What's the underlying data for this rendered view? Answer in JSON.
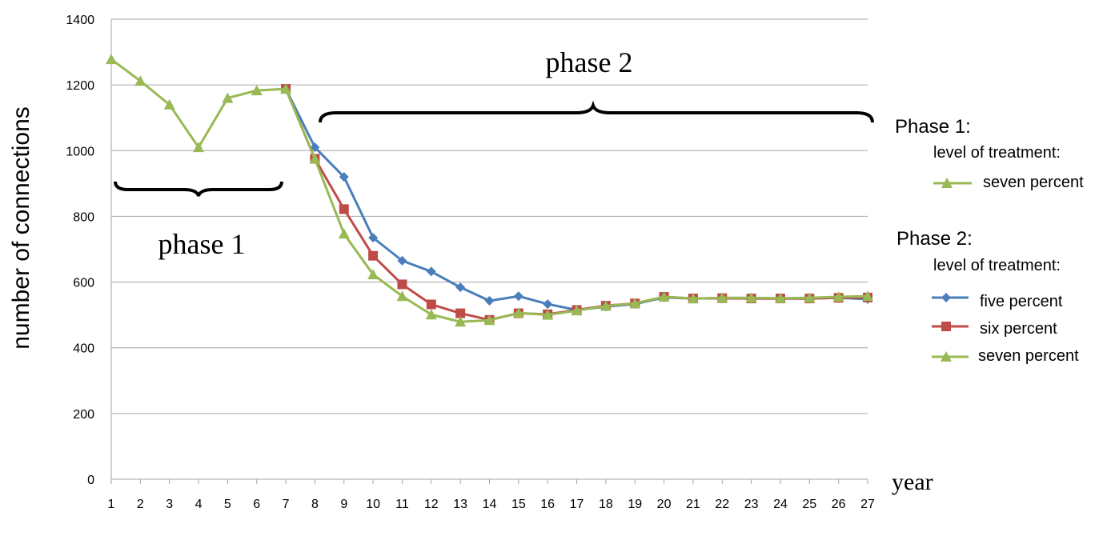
{
  "chart_data": {
    "type": "line",
    "title": "",
    "xlabel": "year",
    "ylabel": "number of connections",
    "ylim": [
      0,
      1400
    ],
    "yticks": [
      0,
      200,
      400,
      600,
      800,
      1000,
      1200,
      1400
    ],
    "grid": true,
    "x": [
      1,
      2,
      3,
      4,
      5,
      6,
      7,
      8,
      9,
      10,
      11,
      12,
      13,
      14,
      15,
      16,
      17,
      18,
      19,
      20,
      21,
      22,
      23,
      24,
      25,
      26,
      27
    ],
    "series": [
      {
        "name": "five percent",
        "color": "#4a7ebb",
        "marker": "diamond",
        "x": [
          7,
          8,
          9,
          10,
          11,
          12,
          13,
          14,
          15,
          16,
          17,
          18,
          19,
          20,
          21,
          22,
          23,
          24,
          25,
          26,
          27
        ],
        "values": [
          1188,
          1010,
          920,
          735,
          665,
          632,
          584,
          543,
          557,
          533,
          515,
          525,
          533,
          553,
          550,
          551,
          550,
          550,
          550,
          552,
          548
        ]
      },
      {
        "name": "six percent",
        "color": "#be4b48",
        "marker": "square",
        "x": [
          7,
          8,
          9,
          10,
          11,
          12,
          13,
          14,
          15,
          16,
          17,
          18,
          19,
          20,
          21,
          22,
          23,
          24,
          25,
          26,
          27
        ],
        "values": [
          1188,
          975,
          822,
          680,
          593,
          532,
          505,
          485,
          505,
          502,
          515,
          528,
          535,
          555,
          550,
          551,
          550,
          550,
          550,
          552,
          553
        ]
      },
      {
        "name": "seven percent",
        "color": "#98b954",
        "marker": "triangle",
        "x": [
          1,
          2,
          3,
          4,
          5,
          6,
          7,
          8,
          9,
          10,
          11,
          12,
          13,
          14,
          15,
          16,
          17,
          18,
          19,
          20,
          21,
          22,
          23,
          24,
          25,
          26,
          27
        ],
        "values": [
          1278,
          1212,
          1140,
          1010,
          1160,
          1183,
          1188,
          975,
          747,
          623,
          557,
          501,
          479,
          484,
          506,
          500,
          513,
          527,
          535,
          555,
          550,
          552,
          552,
          551,
          552,
          555,
          557
        ]
      }
    ],
    "annotations": [
      {
        "text": "phase 1",
        "x_from": 1,
        "x_to": 7
      },
      {
        "text": "phase 2",
        "x_from": 8,
        "x_to": 27
      }
    ],
    "legend": {
      "placement": "right",
      "groups": [
        {
          "title": "Phase 1:",
          "subtitle": "level of treatment:",
          "entries": [
            {
              "label": "seven percent",
              "color": "#98b954",
              "marker": "triangle"
            }
          ]
        },
        {
          "title": "Phase 2:",
          "subtitle": "level of treatment:",
          "entries": [
            {
              "label": "five percent",
              "color": "#4a7ebb",
              "marker": "diamond"
            },
            {
              "label": "six percent",
              "color": "#be4b48",
              "marker": "square"
            },
            {
              "label": "seven percent",
              "color": "#98b954",
              "marker": "triangle"
            }
          ]
        }
      ]
    }
  }
}
